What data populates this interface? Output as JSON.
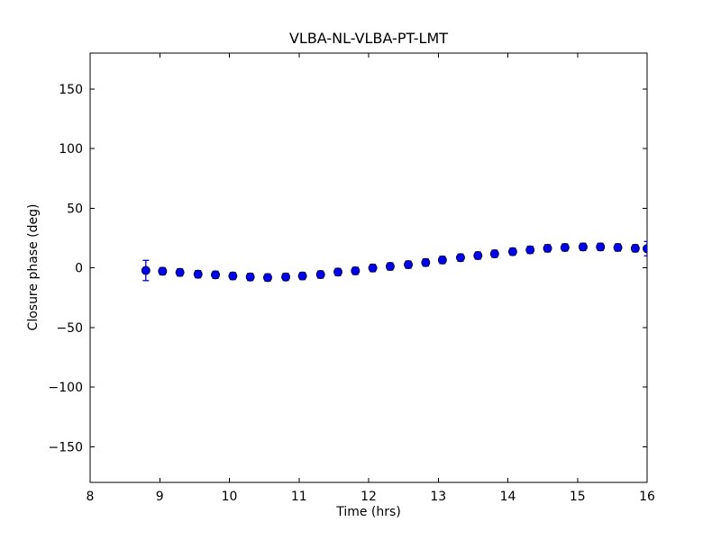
{
  "figure": {
    "background": "#ffffff",
    "frame_color": "#000000"
  },
  "chart_data": {
    "type": "scatter",
    "title": "VLBA-NL-VLBA-PT-LMT",
    "xlabel": "Time (hrs)",
    "ylabel": "Closure phase (deg)",
    "xlim": [
      8,
      16
    ],
    "ylim": [
      -180,
      180
    ],
    "xticks": [
      8,
      9,
      10,
      11,
      12,
      13,
      14,
      15,
      16
    ],
    "xtick_labels": [
      "8",
      "9",
      "10",
      "11",
      "12",
      "13",
      "14",
      "15",
      "16"
    ],
    "yticks": [
      -150,
      -100,
      -50,
      0,
      50,
      100,
      150
    ],
    "ytick_labels": [
      "−150",
      "−100",
      "−50",
      "0",
      "50",
      "100",
      "150"
    ],
    "grid": false,
    "legend": null,
    "marker": {
      "shape": "circle",
      "fill": "#0000ee",
      "edge": "#000044",
      "radius_px": 4.5
    },
    "error_bar_color": "#0000dd",
    "series": [
      {
        "name": "closure-phase",
        "x": [
          8.8,
          9.04,
          9.29,
          9.55,
          9.8,
          10.05,
          10.3,
          10.55,
          10.81,
          11.05,
          11.31,
          11.56,
          11.81,
          12.06,
          12.31,
          12.57,
          12.82,
          13.06,
          13.32,
          13.57,
          13.81,
          14.07,
          14.32,
          14.57,
          14.82,
          15.08,
          15.33,
          15.58,
          15.83,
          16.0
        ],
        "y": [
          -2.3,
          -2.9,
          -3.9,
          -5.4,
          -5.9,
          -6.9,
          -7.7,
          -8.2,
          -7.7,
          -6.9,
          -5.7,
          -3.6,
          -2.6,
          -0.2,
          1.1,
          2.6,
          4.4,
          6.5,
          8.5,
          10.2,
          11.7,
          13.5,
          15.0,
          16.3,
          17.0,
          17.5,
          17.5,
          17.0,
          16.3,
          16.0
        ],
        "yerr": [
          8.5,
          3,
          3,
          3,
          3,
          3,
          3,
          3,
          3,
          3,
          3,
          3,
          3,
          3,
          3,
          3,
          3,
          3,
          3,
          3,
          3,
          3,
          3,
          3,
          3,
          3,
          3,
          3,
          3,
          6
        ]
      }
    ]
  }
}
